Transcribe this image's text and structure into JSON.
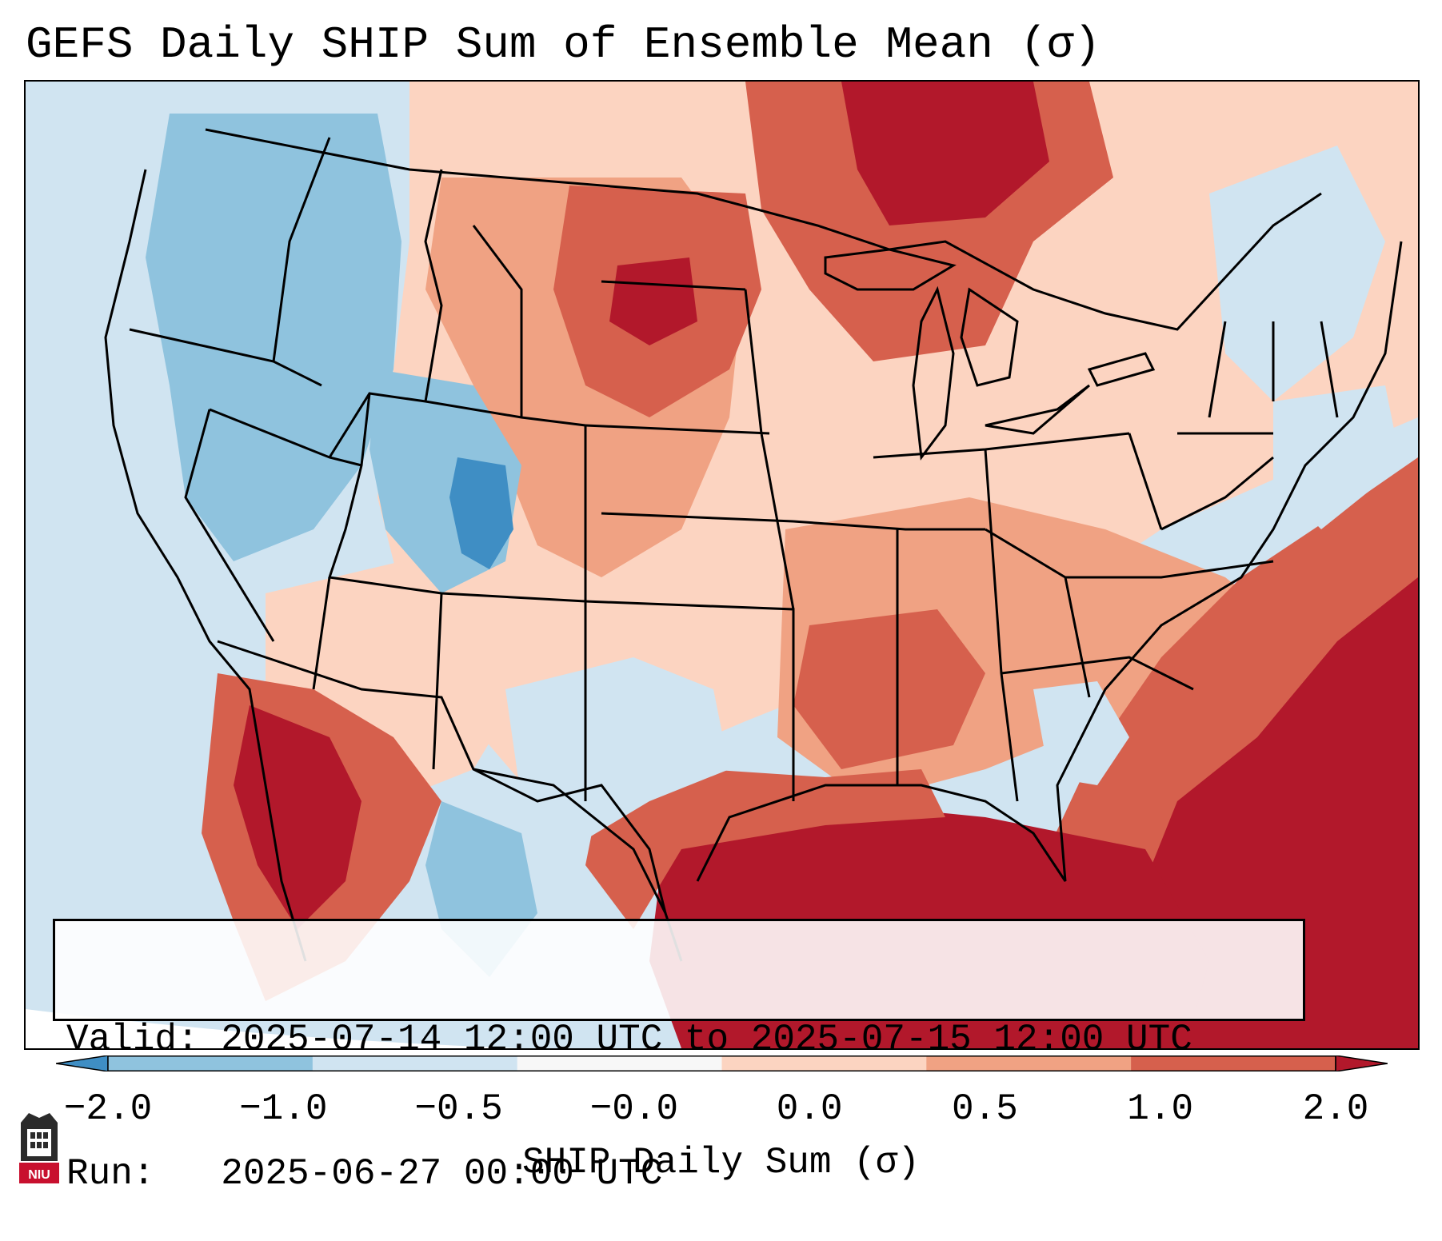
{
  "title": "GEFS Daily SHIP Sum of Ensemble Mean (σ)",
  "info": {
    "valid_line": "Valid: 2025-07-14 12:00 UTC to 2025-07-15 12:00 UTC",
    "run_line": "Run:   2025-06-27 00:00 UTC"
  },
  "colorbar": {
    "label": "SHIP Daily Sum (σ)",
    "ticks": [
      "−2.0",
      "−1.0",
      "−0.5",
      "−0.0",
      "0.0",
      "0.5",
      "1.0",
      "2.0"
    ],
    "colors": [
      "#3f8ec4",
      "#8fc3de",
      "#d0e4f1",
      "#f7f7f7",
      "#fcd4c1",
      "#f0a283",
      "#d6604d",
      "#b2182b"
    ],
    "extend": "both"
  },
  "logo": {
    "text": "NIU",
    "icon": "niu-tower-logo-icon"
  },
  "map": {
    "region": "Contiguous United States, southern Canada, northern Mexico",
    "overall_pattern": "Negative anomalies (blue) over Pacific Northwest, Great Basin and central Rockies; positive anomalies (red) over Plains, Midwest, Southeast, Gulf of Mexico and western Atlantic"
  }
}
